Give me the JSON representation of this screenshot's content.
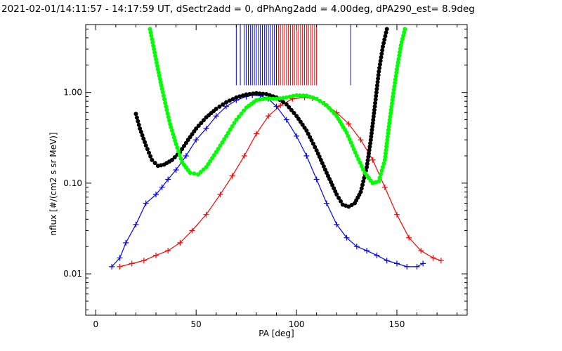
{
  "chart_data": {
    "type": "line",
    "title": "2021-02-01/14:11:57 - 14:17:59 UT, dSectr2add = 0, dPhAng2add = 4.00deg, dPA290_est=    8.9deg",
    "xlabel": "PA [deg]",
    "ylabel": "nflux [#/(cm2 s sr MeV)]",
    "xlim": [
      -5,
      185
    ],
    "ylim": [
      0.0035,
      5.6
    ],
    "yscale": "log",
    "xticks": [
      0,
      50,
      100,
      150
    ],
    "xtick_labels": [
      "0",
      "50",
      "100",
      "150"
    ],
    "yticks": [
      0.01,
      0.1,
      1.0
    ],
    "ytick_labels": [
      "0.01",
      "0.10",
      "1.00"
    ],
    "grid": false,
    "colors": {
      "blue": "#0000ff",
      "red": "#ff0000",
      "black": "#000000",
      "green": "#00ff00"
    },
    "series": [
      {
        "color": "blue",
        "marker": "plus",
        "x": [
          8,
          12,
          15,
          20,
          25,
          30,
          33,
          36,
          40,
          45,
          50,
          55,
          60,
          65,
          70,
          75,
          78,
          82,
          86,
          90,
          95,
          100,
          105,
          110,
          115,
          120,
          125,
          130,
          135,
          140,
          145,
          150,
          155,
          160,
          163
        ],
        "y": [
          0.012,
          0.015,
          0.022,
          0.035,
          0.06,
          0.075,
          0.09,
          0.11,
          0.14,
          0.2,
          0.3,
          0.4,
          0.55,
          0.7,
          0.82,
          0.9,
          0.93,
          0.92,
          0.85,
          0.7,
          0.5,
          0.33,
          0.2,
          0.11,
          0.06,
          0.035,
          0.025,
          0.02,
          0.018,
          0.016,
          0.014,
          0.013,
          0.012,
          0.012,
          0.013
        ]
      },
      {
        "color": "red",
        "marker": "plus",
        "x": [
          12,
          18,
          24,
          30,
          36,
          42,
          48,
          55,
          62,
          68,
          74,
          80,
          86,
          92,
          98,
          104,
          108,
          114,
          120,
          126,
          132,
          138,
          144,
          150,
          156,
          162,
          168,
          172
        ],
        "y": [
          0.012,
          0.013,
          0.014,
          0.016,
          0.018,
          0.022,
          0.03,
          0.045,
          0.075,
          0.12,
          0.2,
          0.35,
          0.55,
          0.72,
          0.85,
          0.88,
          0.86,
          0.75,
          0.6,
          0.45,
          0.3,
          0.18,
          0.09,
          0.045,
          0.025,
          0.018,
          0.015,
          0.014
        ]
      },
      {
        "color": "black",
        "marker": "dot",
        "x": [
          20,
          22,
          25,
          28,
          31,
          34,
          38,
          42,
          46,
          50,
          55,
          60,
          65,
          70,
          75,
          80,
          85,
          90,
          95,
          100,
          105,
          110,
          115,
          120,
          123,
          126,
          129,
          132,
          135,
          137,
          139,
          141,
          143,
          145
        ],
        "y": [
          0.58,
          0.4,
          0.26,
          0.18,
          0.155,
          0.16,
          0.18,
          0.22,
          0.3,
          0.4,
          0.53,
          0.66,
          0.78,
          0.88,
          0.95,
          0.98,
          0.96,
          0.88,
          0.74,
          0.55,
          0.38,
          0.23,
          0.13,
          0.075,
          0.058,
          0.055,
          0.06,
          0.08,
          0.15,
          0.3,
          0.7,
          1.7,
          3.2,
          5.0
        ]
      },
      {
        "color": "green",
        "marker": "dot",
        "x": [
          27,
          29,
          31,
          33,
          35,
          37,
          40,
          43,
          47,
          51,
          55,
          60,
          65,
          70,
          75,
          80,
          85,
          90,
          95,
          100,
          105,
          110,
          115,
          120,
          125,
          130,
          134,
          138,
          141,
          144,
          146,
          148,
          150,
          152,
          154
        ],
        "y": [
          5.0,
          3.0,
          1.8,
          1.1,
          0.7,
          0.45,
          0.27,
          0.17,
          0.13,
          0.125,
          0.15,
          0.22,
          0.33,
          0.5,
          0.68,
          0.82,
          0.86,
          0.85,
          0.88,
          0.93,
          0.92,
          0.85,
          0.72,
          0.55,
          0.36,
          0.2,
          0.13,
          0.1,
          0.105,
          0.18,
          0.42,
          0.9,
          1.8,
          3.3,
          5.0
        ]
      }
    ],
    "ticks_top": {
      "y_range": [
        1.2,
        5.6
      ],
      "blue_x": [
        70,
        72,
        74,
        75,
        76,
        77,
        78,
        79,
        80,
        81,
        82,
        83,
        84,
        85,
        86,
        87,
        88,
        89,
        90,
        127
      ],
      "red_x": [
        91,
        92,
        93,
        94,
        95,
        96,
        97,
        98,
        99,
        100,
        101,
        102,
        103,
        104,
        105,
        106,
        107,
        108,
        109,
        110
      ]
    }
  }
}
